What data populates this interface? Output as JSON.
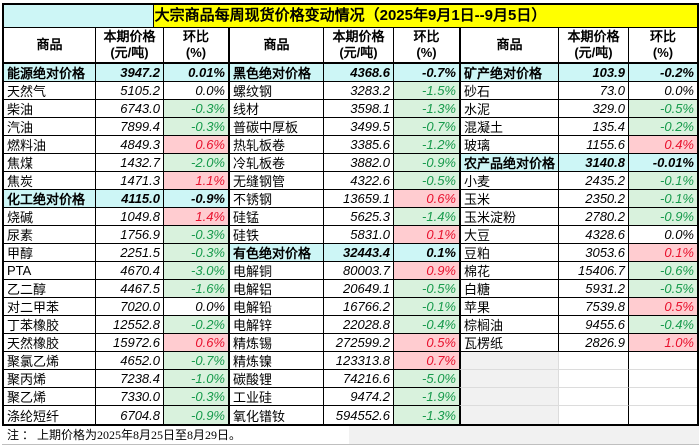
{
  "title": "大宗商品每周现货价格变动情况（2025年9月1日--9月5日）",
  "note": "注 ： 上期价格为2025年8月25日至8月29日。",
  "header": {
    "product": "商品",
    "price_line1": "本期价格",
    "price_line2": "(元/吨)",
    "pct_line1": "环比",
    "pct_line2": "(%)"
  },
  "colors": {
    "title_bg": "#ffff00",
    "category_row_bg": "#cdf6f6",
    "increase_bg": "#ffccd0",
    "increase_text": "#e8112d",
    "decrease_bg": "#d9f2dd",
    "decrease_text": "#169a4b",
    "border": "#000000"
  },
  "chart_data": {
    "type": "table",
    "columns": [
      "商品",
      "本期价格(元/吨)",
      "环比(%)"
    ],
    "groups": [
      {
        "rows": [
          {
            "name": "能源绝对价格",
            "price": "3947.2",
            "pct": "0.01%",
            "state": "cat"
          },
          {
            "name": "天然气",
            "price": "5105.2",
            "pct": "0.0%",
            "state": "zero"
          },
          {
            "name": "柴油",
            "price": "6743.0",
            "pct": "-0.3%",
            "state": "down"
          },
          {
            "name": "汽油",
            "price": "7899.4",
            "pct": "-0.3%",
            "state": "down"
          },
          {
            "name": "燃料油",
            "price": "4849.3",
            "pct": "0.6%",
            "state": "up"
          },
          {
            "name": "焦煤",
            "price": "1432.7",
            "pct": "-2.0%",
            "state": "down"
          },
          {
            "name": "焦炭",
            "price": "1471.3",
            "pct": "1.1%",
            "state": "up"
          },
          {
            "name": "化工绝对价格",
            "price": "4115.0",
            "pct": "-0.9%",
            "state": "cat"
          },
          {
            "name": "烧碱",
            "price": "1049.8",
            "pct": "1.4%",
            "state": "up"
          },
          {
            "name": "尿素",
            "price": "1756.9",
            "pct": "-0.3%",
            "state": "down"
          },
          {
            "name": "甲醇",
            "price": "2251.5",
            "pct": "-0.3%",
            "state": "down"
          },
          {
            "name": "PTA",
            "price": "4670.4",
            "pct": "-3.0%",
            "state": "down"
          },
          {
            "name": "乙二醇",
            "price": "4467.5",
            "pct": "-1.6%",
            "state": "down"
          },
          {
            "name": "对二甲苯",
            "price": "7020.0",
            "pct": "0.0%",
            "state": "zero"
          },
          {
            "name": "丁苯橡胶",
            "price": "12552.8",
            "pct": "-0.2%",
            "state": "down"
          },
          {
            "name": "天然橡胶",
            "price": "15972.6",
            "pct": "0.6%",
            "state": "up"
          },
          {
            "name": "聚氯乙烯",
            "price": "4652.0",
            "pct": "-0.7%",
            "state": "down"
          },
          {
            "name": "聚丙烯",
            "price": "7238.4",
            "pct": "-1.0%",
            "state": "down"
          },
          {
            "name": "聚乙烯",
            "price": "7330.0",
            "pct": "-0.3%",
            "state": "down"
          },
          {
            "name": "涤纶短纤",
            "price": "6704.8",
            "pct": "-0.9%",
            "state": "down"
          }
        ]
      },
      {
        "rows": [
          {
            "name": "黑色绝对价格",
            "price": "4368.6",
            "pct": "-0.7%",
            "state": "cat"
          },
          {
            "name": "螺纹钢",
            "price": "3283.2",
            "pct": "-1.5%",
            "state": "down"
          },
          {
            "name": "线材",
            "price": "3598.1",
            "pct": "-1.3%",
            "state": "down"
          },
          {
            "name": "普碳中厚板",
            "price": "3499.5",
            "pct": "-0.7%",
            "state": "down"
          },
          {
            "name": "热轧板卷",
            "price": "3385.6",
            "pct": "-1.2%",
            "state": "down"
          },
          {
            "name": "冷轧板卷",
            "price": "3882.0",
            "pct": "-0.9%",
            "state": "down"
          },
          {
            "name": "无缝钢管",
            "price": "4322.6",
            "pct": "-0.5%",
            "state": "down"
          },
          {
            "name": "不锈钢",
            "price": "13659.1",
            "pct": "0.6%",
            "state": "up"
          },
          {
            "name": "硅锰",
            "price": "5625.3",
            "pct": "-1.4%",
            "state": "down"
          },
          {
            "name": "硅铁",
            "price": "5831.0",
            "pct": "0.1%",
            "state": "up"
          },
          {
            "name": "有色绝对价格",
            "price": "32443.4",
            "pct": "0.1%",
            "state": "cat"
          },
          {
            "name": "电解铜",
            "price": "80003.7",
            "pct": "0.9%",
            "state": "up"
          },
          {
            "name": "电解铝",
            "price": "20649.1",
            "pct": "-0.5%",
            "state": "down"
          },
          {
            "name": "电解铅",
            "price": "16766.2",
            "pct": "-0.1%",
            "state": "down"
          },
          {
            "name": "电解锌",
            "price": "22028.8",
            "pct": "-0.4%",
            "state": "down"
          },
          {
            "name": "精炼锡",
            "price": "272599.2",
            "pct": "0.5%",
            "state": "up"
          },
          {
            "name": "精炼镍",
            "price": "123313.8",
            "pct": "0.7%",
            "state": "up"
          },
          {
            "name": "碳酸锂",
            "price": "74216.6",
            "pct": "-5.0%",
            "state": "down"
          },
          {
            "name": "工业硅",
            "price": "9474.2",
            "pct": "-1.9%",
            "state": "down"
          },
          {
            "name": "氧化镨钕",
            "price": "594552.6",
            "pct": "-1.3%",
            "state": "down"
          }
        ]
      },
      {
        "rows": [
          {
            "name": "矿产绝对价格",
            "price": "103.9",
            "pct": "-0.2%",
            "state": "cat"
          },
          {
            "name": "砂石",
            "price": "73.0",
            "pct": "0.0%",
            "state": "zero"
          },
          {
            "name": "水泥",
            "price": "329.0",
            "pct": "-0.5%",
            "state": "down"
          },
          {
            "name": "混凝土",
            "price": "135.4",
            "pct": "-0.2%",
            "state": "down"
          },
          {
            "name": "玻璃",
            "price": "1155.6",
            "pct": "0.4%",
            "state": "up"
          },
          {
            "name": "农产品绝对价格",
            "price": "3140.8",
            "pct": "-0.01%",
            "state": "cat"
          },
          {
            "name": "小麦",
            "price": "2435.2",
            "pct": "-0.1%",
            "state": "down"
          },
          {
            "name": "玉米",
            "price": "2350.2",
            "pct": "-0.1%",
            "state": "down"
          },
          {
            "name": "玉米淀粉",
            "price": "2780.2",
            "pct": "-0.9%",
            "state": "down"
          },
          {
            "name": "大豆",
            "price": "4328.6",
            "pct": "0.0%",
            "state": "zero"
          },
          {
            "name": "豆粕",
            "price": "3053.6",
            "pct": "0.1%",
            "state": "up"
          },
          {
            "name": "棉花",
            "price": "15406.7",
            "pct": "-0.6%",
            "state": "down"
          },
          {
            "name": "白糖",
            "price": "5931.2",
            "pct": "-0.5%",
            "state": "down"
          },
          {
            "name": "苹果",
            "price": "7539.8",
            "pct": "0.5%",
            "state": "up"
          },
          {
            "name": "棕榈油",
            "price": "9455.6",
            "pct": "-0.4%",
            "state": "down"
          },
          {
            "name": "瓦楞纸",
            "price": "2826.9",
            "pct": "1.0%",
            "state": "up"
          },
          {
            "name": "",
            "price": "",
            "pct": "",
            "state": "empty"
          },
          {
            "name": "",
            "price": "",
            "pct": "",
            "state": "empty"
          },
          {
            "name": "",
            "price": "",
            "pct": "",
            "state": "empty"
          },
          {
            "name": "",
            "price": "",
            "pct": "",
            "state": "empty"
          }
        ]
      }
    ]
  }
}
